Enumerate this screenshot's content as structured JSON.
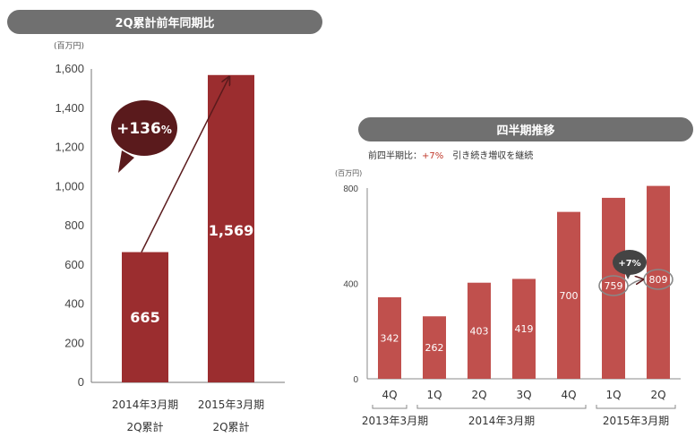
{
  "left_panel": {
    "header": "2Q累計前年同期比",
    "growth_label": "+136",
    "growth_unit": "%"
  },
  "right_panel": {
    "header": "四半期推移",
    "note_prefix": "前四半期比：",
    "note_value": "+7%",
    "note_suffix": "　引き続き増収を継続",
    "callout_label": "+7%"
  },
  "colors": {
    "bar_dark": "#9b2d2f",
    "bar_light": "#c0504d",
    "callout_dark": "#5a1a1c",
    "header_bg": "#707070"
  },
  "chart_data": [
    {
      "type": "bar",
      "unit_label": "(百万円)",
      "categories": [
        "2014年3月期\n2Q累計",
        "2015年3月期\n2Q累計"
      ],
      "category_lines": [
        [
          "2014年3月期",
          "2Q累計"
        ],
        [
          "2015年3月期",
          "2Q累計"
        ]
      ],
      "values": [
        665,
        1569
      ],
      "value_labels": [
        "665",
        "1,569"
      ],
      "ylim": [
        0,
        1600
      ],
      "yticks": [
        0,
        200,
        400,
        600,
        800,
        1000,
        1200,
        1400,
        1600
      ],
      "ytick_labels": [
        "0",
        "200",
        "400",
        "600",
        "800",
        "1,000",
        "1,200",
        "1,400",
        "1,600"
      ],
      "title": "",
      "xlabel": "",
      "ylabel": "",
      "grid": false,
      "annotation": "+136%"
    },
    {
      "type": "bar",
      "unit_label": "(百万円)",
      "categories": [
        "4Q",
        "1Q",
        "2Q",
        "3Q",
        "4Q",
        "1Q",
        "2Q"
      ],
      "values": [
        342,
        262,
        403,
        419,
        700,
        759,
        809
      ],
      "value_labels": [
        "342",
        "262",
        "403",
        "419",
        "700",
        "759",
        "809"
      ],
      "ylim": [
        0,
        800
      ],
      "yticks": [
        0,
        400,
        800
      ],
      "ytick_labels": [
        "0",
        "400",
        "800"
      ],
      "groups": [
        {
          "label": "2013年3月期",
          "start": 0,
          "end": 0
        },
        {
          "label": "2014年3月期",
          "start": 1,
          "end": 4
        },
        {
          "label": "2015年3月期",
          "start": 5,
          "end": 6
        }
      ],
      "highlighted": [
        5,
        6
      ],
      "annotation": "+7%",
      "title": "",
      "xlabel": "",
      "ylabel": "",
      "grid": false
    }
  ]
}
